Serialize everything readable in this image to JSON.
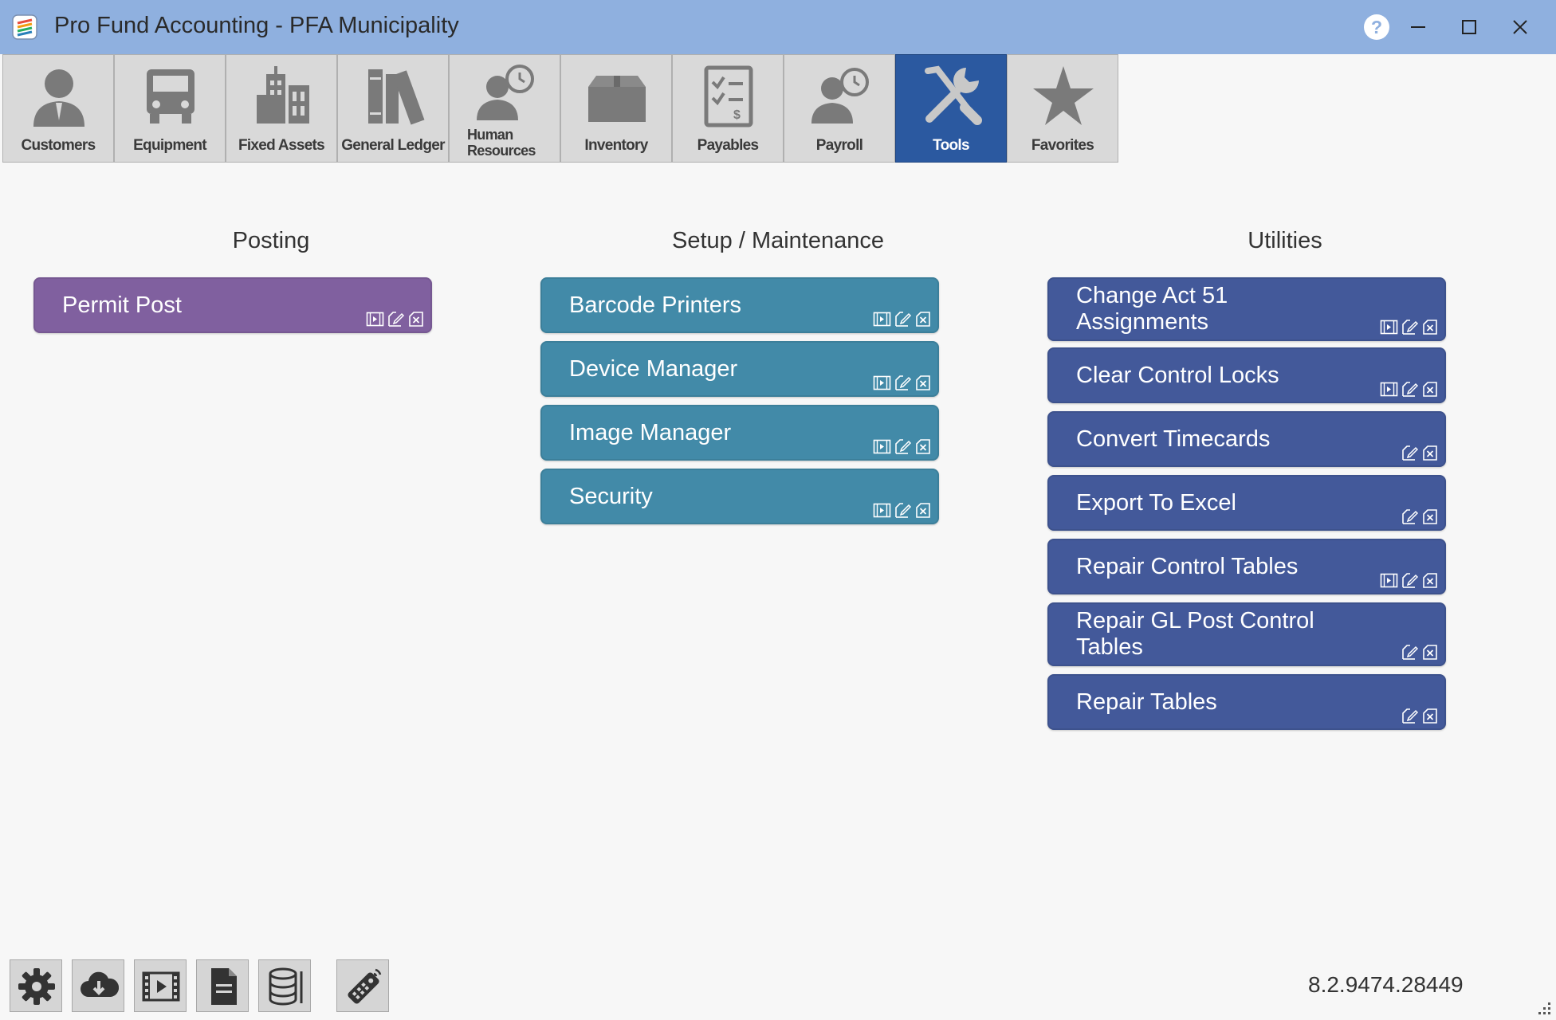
{
  "window": {
    "title": "Pro Fund Accounting - PFA Municipality",
    "help_label": "?"
  },
  "modules": [
    {
      "label": "Customers",
      "icon": "customer-icon",
      "active": false
    },
    {
      "label": "Equipment",
      "icon": "truck-icon",
      "active": false
    },
    {
      "label": "Fixed Assets",
      "icon": "building-icon",
      "active": false
    },
    {
      "label": "General Ledger",
      "icon": "ledger-books-icon",
      "active": false
    },
    {
      "label": "Human Resources",
      "icon": "person-clock-icon",
      "active": false
    },
    {
      "label": "Inventory",
      "icon": "box-icon",
      "active": false
    },
    {
      "label": "Payables",
      "icon": "checklist-dollar-icon",
      "active": false
    },
    {
      "label": "Payroll",
      "icon": "person-clock-icon",
      "active": false
    },
    {
      "label": "Tools",
      "icon": "tools-icon",
      "active": true
    },
    {
      "label": "Favorites",
      "icon": "star-icon",
      "active": false
    }
  ],
  "sections": {
    "posting": {
      "heading": "Posting",
      "items": [
        {
          "label": "Permit Post",
          "icons": [
            "video-icon",
            "edit-icon",
            "close-doc-icon"
          ]
        }
      ]
    },
    "setup": {
      "heading": "Setup / Maintenance",
      "items": [
        {
          "label": "Barcode Printers",
          "icons": [
            "video-icon",
            "edit-icon",
            "close-doc-icon"
          ]
        },
        {
          "label": "Device Manager",
          "icons": [
            "video-icon",
            "edit-icon",
            "close-doc-icon"
          ]
        },
        {
          "label": "Image Manager",
          "icons": [
            "video-icon",
            "edit-icon",
            "close-doc-icon"
          ]
        },
        {
          "label": "Security",
          "icons": [
            "video-icon",
            "edit-icon",
            "close-doc-icon"
          ]
        }
      ]
    },
    "utilities": {
      "heading": "Utilities",
      "items": [
        {
          "label": "Change Act 51 Assignments",
          "icons": [
            "video-icon",
            "edit-icon",
            "close-doc-icon"
          ]
        },
        {
          "label": "Clear Control Locks",
          "icons": [
            "video-icon",
            "edit-icon",
            "close-doc-icon"
          ]
        },
        {
          "label": "Convert Timecards",
          "icons": [
            "edit-icon",
            "close-doc-icon"
          ]
        },
        {
          "label": "Export To Excel",
          "icons": [
            "edit-icon",
            "close-doc-icon"
          ]
        },
        {
          "label": "Repair Control Tables",
          "icons": [
            "video-icon",
            "edit-icon",
            "close-doc-icon"
          ]
        },
        {
          "label": "Repair GL Post Control Tables",
          "icons": [
            "edit-icon",
            "close-doc-icon"
          ]
        },
        {
          "label": "Repair Tables",
          "icons": [
            "edit-icon",
            "close-doc-icon"
          ]
        }
      ]
    }
  },
  "bottom_toolbar": [
    "gear-icon",
    "cloud-download-icon",
    "video-icon",
    "document-icon",
    "database-icon",
    "remote-icon"
  ],
  "version": "8.2.9474.28449",
  "colors": {
    "titlebar": "#8fb0df",
    "posting_tile": "#80609f",
    "setup_tile": "#428aa8",
    "utility_tile": "#43599a",
    "active_module": "#2b59a0"
  }
}
